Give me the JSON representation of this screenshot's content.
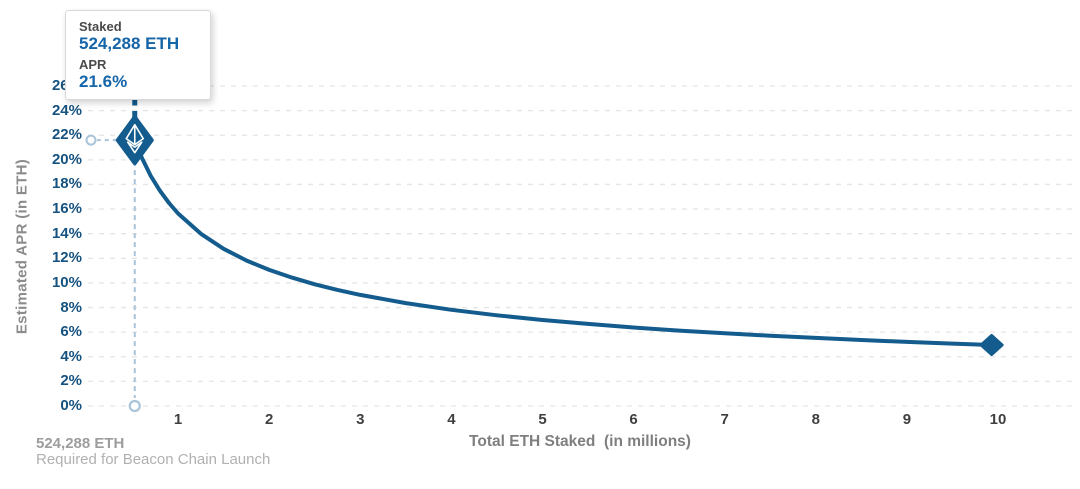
{
  "tooltip": {
    "staked_label": "Staked",
    "staked_value": "524,288 ETH",
    "apr_label": "APR",
    "apr_value": "21.6%"
  },
  "annotation": {
    "line1": "524,288 ETH",
    "line2": "Required for Beacon Chain Launch"
  },
  "chart_data": {
    "type": "line",
    "title": "",
    "xlabel": "Total ETH Staked  (in millions)",
    "ylabel": "Estimated APR (in ETH)",
    "xlim": [
      0,
      10.8
    ],
    "ylim": [
      0,
      26
    ],
    "grid": true,
    "x_ticks": [
      1,
      2,
      3,
      4,
      5,
      6,
      7,
      8,
      9,
      10
    ],
    "y_tick_labels": [
      "0%",
      "2%",
      "4%",
      "6%",
      "8%",
      "10%",
      "12%",
      "14%",
      "16%",
      "18%",
      "20%",
      "22%",
      "24%",
      "26%"
    ],
    "series": [
      {
        "name": "Estimated APR (in ETH)",
        "points": [
          [
            0.524288,
            21.6
          ],
          [
            0.6,
            20.19
          ],
          [
            0.7,
            18.69
          ],
          [
            0.8,
            17.49
          ],
          [
            0.9,
            16.49
          ],
          [
            1.0,
            15.64
          ],
          [
            1.25,
            13.99
          ],
          [
            1.5,
            12.77
          ],
          [
            1.75,
            11.82
          ],
          [
            2.0,
            11.06
          ],
          [
            2.25,
            10.43
          ],
          [
            2.5,
            9.89
          ],
          [
            2.75,
            9.43
          ],
          [
            3.0,
            9.03
          ],
          [
            3.5,
            8.36
          ],
          [
            4.0,
            7.82
          ],
          [
            4.5,
            7.37
          ],
          [
            5.0,
            6.99
          ],
          [
            5.5,
            6.67
          ],
          [
            6.0,
            6.38
          ],
          [
            6.5,
            6.13
          ],
          [
            7.0,
            5.91
          ],
          [
            7.5,
            5.71
          ],
          [
            8.0,
            5.53
          ],
          [
            8.5,
            5.36
          ],
          [
            9.0,
            5.21
          ],
          [
            9.5,
            5.07
          ],
          [
            9.93,
            4.96
          ]
        ]
      }
    ],
    "highlight_point": {
      "x": 0.524288,
      "y": 21.6,
      "label": "524,288 ETH staked, 21.6% APR"
    },
    "end_point": {
      "x": 9.93,
      "y": 4.96
    },
    "colors": {
      "curve": "#135c8d",
      "y_tick": "#16527f",
      "x_tick": "#3f3f3f",
      "grid": "#e5e5e5",
      "connector": "#a9c3d9",
      "tooltip_value": "#1565a8",
      "axis_title": "#7f7f7f",
      "annotation_gray": "#a5a5a5"
    }
  }
}
